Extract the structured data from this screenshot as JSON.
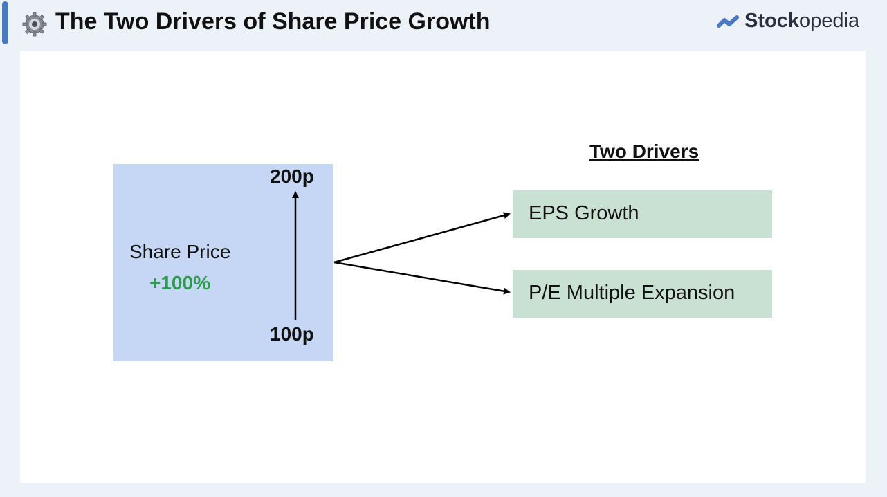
{
  "header": {
    "title": "The Two Drivers of Share Price Growth",
    "logo_bold": "Stock",
    "logo_light": "opedia"
  },
  "diagram": {
    "share_price_label": "Share Price",
    "change": "+100%",
    "start_price": "100p",
    "end_price": "200p",
    "drivers_heading": "Two Drivers",
    "drivers": [
      "EPS Growth",
      "P/E Multiple Expansion"
    ]
  },
  "colors": {
    "accent": "#4a78c2",
    "price_box": "#c5d7f5",
    "driver_box": "#c9e1d3",
    "positive": "#2e9a4e"
  }
}
